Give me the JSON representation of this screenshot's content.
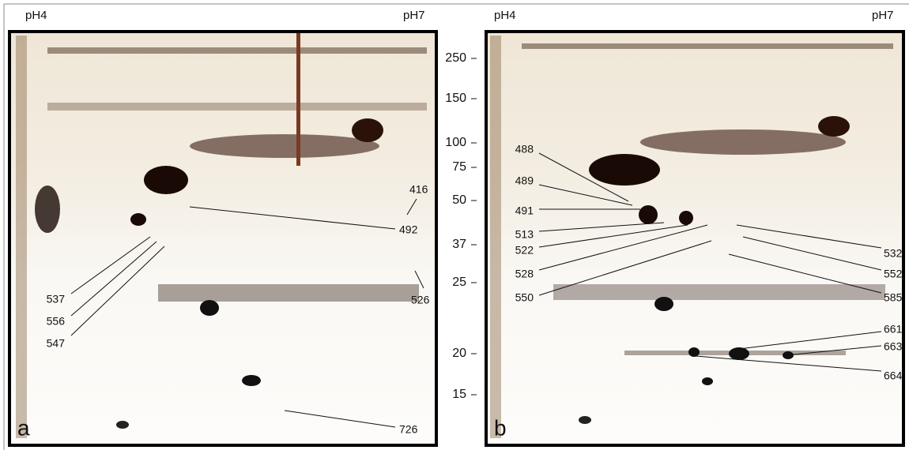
{
  "panels": [
    {
      "label": "a",
      "ph_left": "pH4",
      "ph_right": "pH7",
      "spots": [
        "416",
        "492",
        "526",
        "537",
        "556",
        "547",
        "726"
      ]
    },
    {
      "label": "b",
      "ph_left": "pH4",
      "ph_right": "pH7",
      "spots": [
        "488",
        "489",
        "491",
        "513",
        "522",
        "528",
        "550",
        "532",
        "552",
        "585",
        "661",
        "663",
        "664"
      ]
    }
  ],
  "mw_scale": [
    "250",
    "150",
    "100",
    "75",
    "50",
    "37",
    "25",
    "20",
    "15"
  ]
}
